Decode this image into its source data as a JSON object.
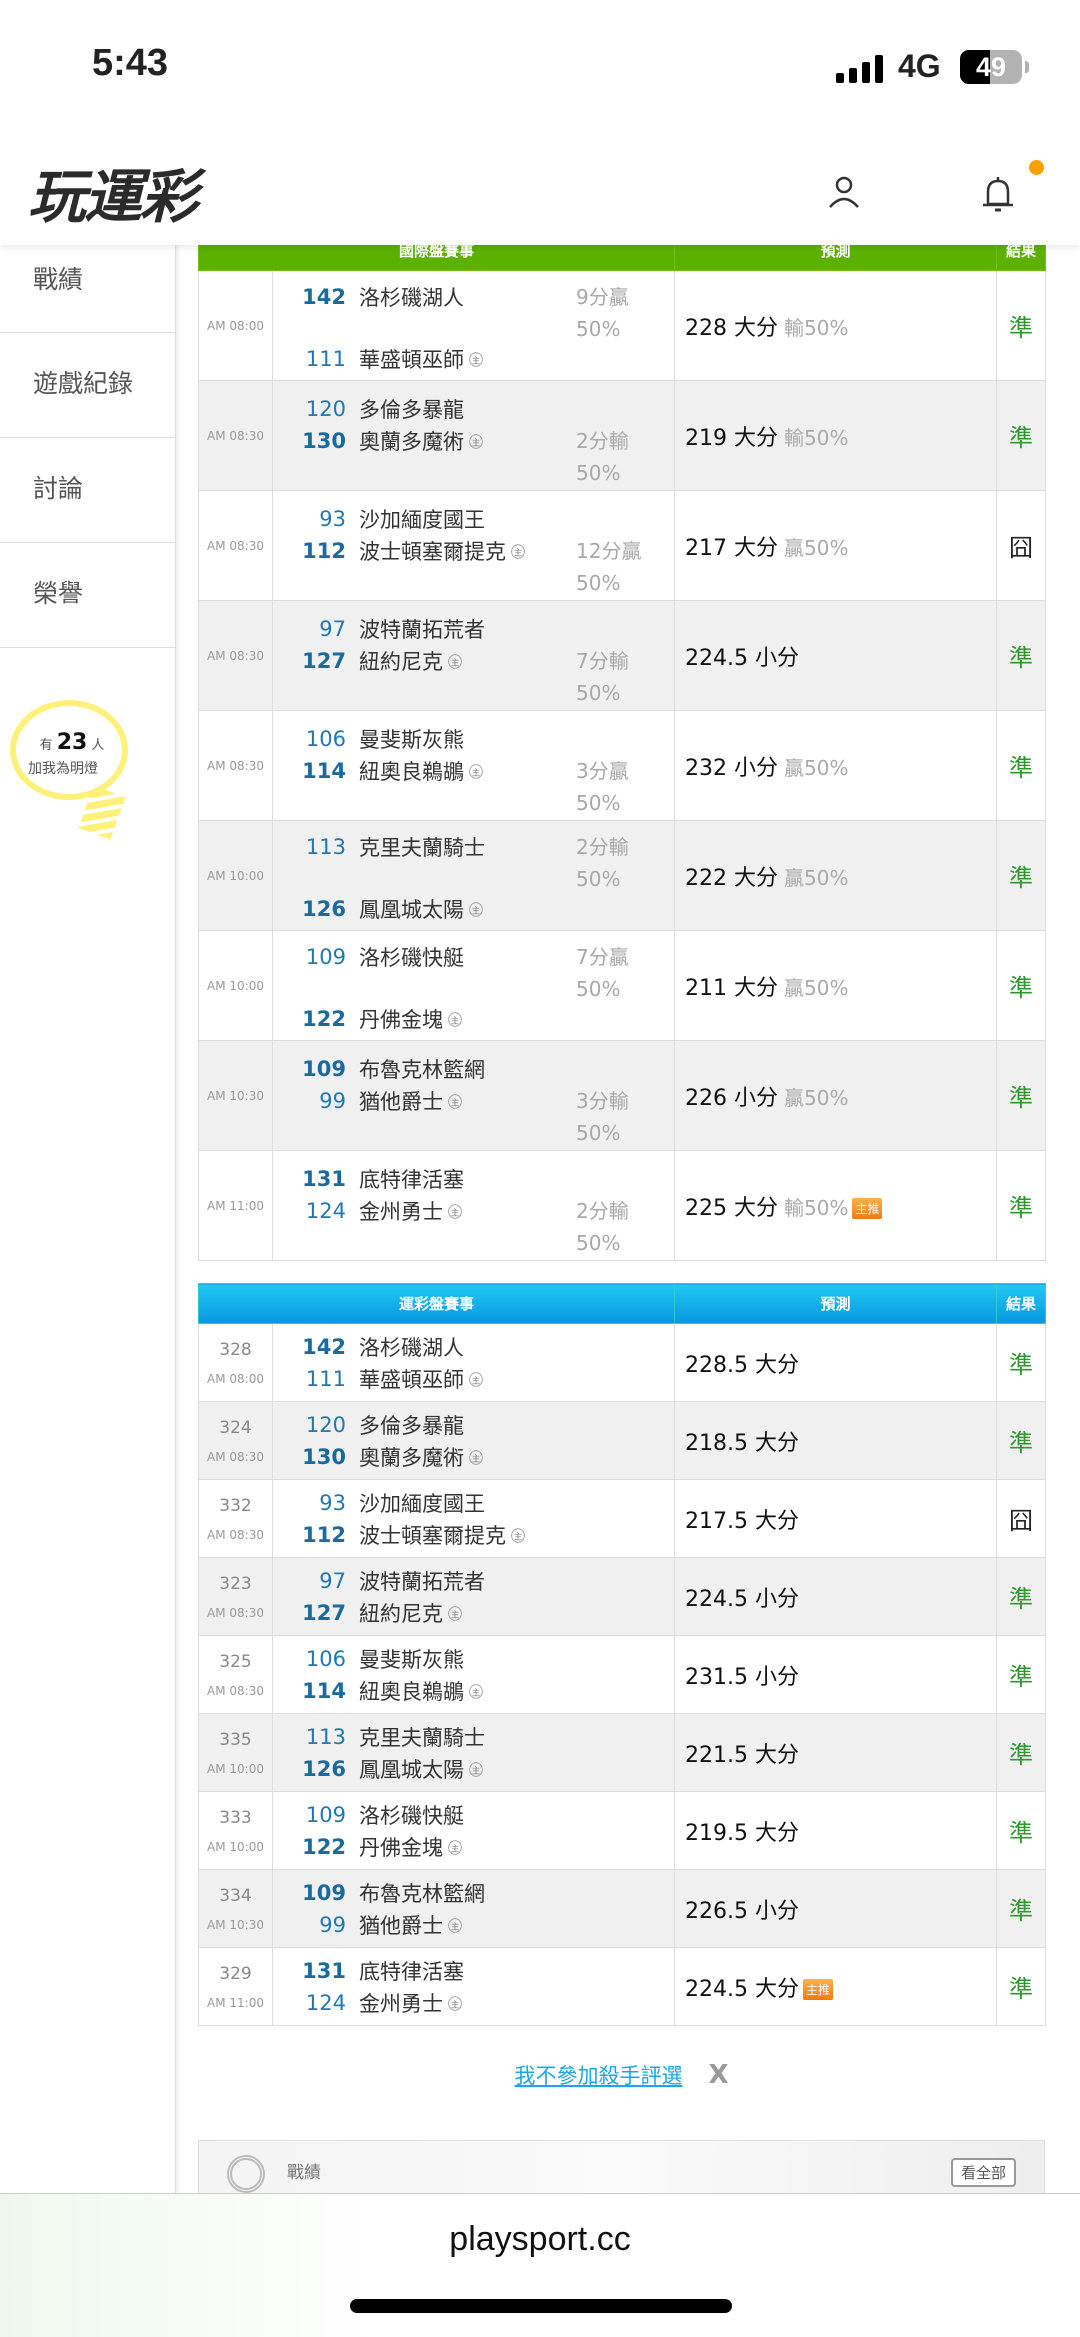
{
  "status_bar": {
    "time": "5:43",
    "network": "4G",
    "battery": "49",
    "battery_level": 0.49
  },
  "header": {
    "logo_text": "玩運彩",
    "user_icon": "user-icon",
    "bell_icon": "bell-icon",
    "notification_dot_color": "#ffa000"
  },
  "sidebar": {
    "items": [
      {
        "label": "戰績"
      },
      {
        "label": "遊戲紀錄"
      },
      {
        "label": "討論"
      },
      {
        "label": "榮譽"
      }
    ],
    "lamp": {
      "prefix": "有",
      "count": "23",
      "suffix": "人",
      "caption": "加我為明燈"
    }
  },
  "intl_table": {
    "headers": [
      "國際盤賽事",
      "預測",
      "結果"
    ],
    "home_tag": "主",
    "rows": [
      {
        "time": "AM 08:00",
        "away": {
          "num": "142",
          "name": "洛杉磯湖人"
        },
        "home": {
          "num": "111",
          "name": "華盛頓巫師"
        },
        "winner": "away",
        "spread": {
          "text": "9分贏",
          "pct": "50%",
          "side": "away"
        },
        "prediction": {
          "line": "228 大分",
          "odds": "輸50%"
        },
        "result": "準"
      },
      {
        "time": "AM 08:30",
        "away": {
          "num": "120",
          "name": "多倫多暴龍"
        },
        "home": {
          "num": "130",
          "name": "奧蘭多魔術"
        },
        "winner": "home",
        "spread": {
          "text": "2分輸",
          "pct": "50%",
          "side": "home"
        },
        "prediction": {
          "line": "219 大分",
          "odds": "輸50%"
        },
        "result": "準"
      },
      {
        "time": "AM 08:30",
        "away": {
          "num": "93",
          "name": "沙加緬度國王"
        },
        "home": {
          "num": "112",
          "name": "波士頓塞爾提克"
        },
        "winner": "home",
        "spread": {
          "text": "12分贏",
          "pct": "50%",
          "side": "home"
        },
        "prediction": {
          "line": "217 大分",
          "odds": "贏50%"
        },
        "result": "囧"
      },
      {
        "time": "AM 08:30",
        "away": {
          "num": "97",
          "name": "波特蘭拓荒者"
        },
        "home": {
          "num": "127",
          "name": "紐約尼克"
        },
        "winner": "home",
        "spread": {
          "text": "7分輸",
          "pct": "50%",
          "side": "home"
        },
        "prediction": {
          "line": "224.5 小分",
          "odds": ""
        },
        "result": "準"
      },
      {
        "time": "AM 08:30",
        "away": {
          "num": "106",
          "name": "曼斐斯灰熊"
        },
        "home": {
          "num": "114",
          "name": "紐奧良鵜鶘"
        },
        "winner": "home",
        "spread": {
          "text": "3分贏",
          "pct": "50%",
          "side": "home"
        },
        "prediction": {
          "line": "232 小分",
          "odds": "贏50%"
        },
        "result": "準"
      },
      {
        "time": "AM 10:00",
        "away": {
          "num": "113",
          "name": "克里夫蘭騎士"
        },
        "home": {
          "num": "126",
          "name": "鳳凰城太陽"
        },
        "winner": "home",
        "spread": {
          "text": "2分輸",
          "pct": "50%",
          "side": "away"
        },
        "prediction": {
          "line": "222 大分",
          "odds": "贏50%"
        },
        "result": "準"
      },
      {
        "time": "AM 10:00",
        "away": {
          "num": "109",
          "name": "洛杉磯快艇"
        },
        "home": {
          "num": "122",
          "name": "丹佛金塊"
        },
        "winner": "home",
        "spread": {
          "text": "7分贏",
          "pct": "50%",
          "side": "away"
        },
        "prediction": {
          "line": "211 大分",
          "odds": "贏50%"
        },
        "result": "準"
      },
      {
        "time": "AM 10:30",
        "away": {
          "num": "109",
          "name": "布魯克林籃網"
        },
        "home": {
          "num": "99",
          "name": "猶他爵士"
        },
        "winner": "away",
        "spread": {
          "text": "3分輸",
          "pct": "50%",
          "side": "home"
        },
        "prediction": {
          "line": "226 小分",
          "odds": "贏50%"
        },
        "result": "準"
      },
      {
        "time": "AM 11:00",
        "away": {
          "num": "131",
          "name": "底特律活塞"
        },
        "home": {
          "num": "124",
          "name": "金州勇士"
        },
        "winner": "away",
        "spread": {
          "text": "2分輸",
          "pct": "50%",
          "side": "home"
        },
        "prediction": {
          "line": "225 大分",
          "odds": "輸50%",
          "badge": "主推"
        },
        "result": "準"
      }
    ]
  },
  "lottery_table": {
    "headers": [
      "運彩盤賽事",
      "預測",
      "結果"
    ],
    "home_tag": "主",
    "rows": [
      {
        "id": "328",
        "time": "AM 08:00",
        "away": {
          "num": "142",
          "name": "洛杉磯湖人"
        },
        "home": {
          "num": "111",
          "name": "華盛頓巫師"
        },
        "winner": "away",
        "prediction": {
          "line": "228.5 大分"
        },
        "result": "準"
      },
      {
        "id": "324",
        "time": "AM 08:30",
        "away": {
          "num": "120",
          "name": "多倫多暴龍"
        },
        "home": {
          "num": "130",
          "name": "奧蘭多魔術"
        },
        "winner": "home",
        "prediction": {
          "line": "218.5 大分"
        },
        "result": "準"
      },
      {
        "id": "332",
        "time": "AM 08:30",
        "away": {
          "num": "93",
          "name": "沙加緬度國王"
        },
        "home": {
          "num": "112",
          "name": "波士頓塞爾提克"
        },
        "winner": "home",
        "prediction": {
          "line": "217.5 大分"
        },
        "result": "囧"
      },
      {
        "id": "323",
        "time": "AM 08:30",
        "away": {
          "num": "97",
          "name": "波特蘭拓荒者"
        },
        "home": {
          "num": "127",
          "name": "紐約尼克"
        },
        "winner": "home",
        "prediction": {
          "line": "224.5 小分"
        },
        "result": "準"
      },
      {
        "id": "325",
        "time": "AM 08:30",
        "away": {
          "num": "106",
          "name": "曼斐斯灰熊"
        },
        "home": {
          "num": "114",
          "name": "紐奧良鵜鶘"
        },
        "winner": "home",
        "prediction": {
          "line": "231.5 小分"
        },
        "result": "準"
      },
      {
        "id": "335",
        "time": "AM 10:00",
        "away": {
          "num": "113",
          "name": "克里夫蘭騎士"
        },
        "home": {
          "num": "126",
          "name": "鳳凰城太陽"
        },
        "winner": "home",
        "prediction": {
          "line": "221.5 大分"
        },
        "result": "準"
      },
      {
        "id": "333",
        "time": "AM 10:00",
        "away": {
          "num": "109",
          "name": "洛杉磯快艇"
        },
        "home": {
          "num": "122",
          "name": "丹佛金塊"
        },
        "winner": "home",
        "prediction": {
          "line": "219.5 大分"
        },
        "result": "準"
      },
      {
        "id": "334",
        "time": "AM 10:30",
        "away": {
          "num": "109",
          "name": "布魯克林籃網"
        },
        "home": {
          "num": "99",
          "name": "猶他爵士"
        },
        "winner": "away",
        "prediction": {
          "line": "226.5 小分"
        },
        "result": "準"
      },
      {
        "id": "329",
        "time": "AM 11:00",
        "away": {
          "num": "131",
          "name": "底特律活塞"
        },
        "home": {
          "num": "124",
          "name": "金州勇士"
        },
        "winner": "away",
        "prediction": {
          "line": "224.5 大分",
          "badge": "主推"
        },
        "result": "準"
      }
    ]
  },
  "optout": {
    "link": "我不參加殺手評選",
    "close": "X"
  },
  "record_panel": {
    "title": "戰績",
    "view_all": "看全部"
  },
  "browser": {
    "url": "playsport.cc"
  },
  "colors": {
    "intl_header": "#5cb000",
    "lottery_header": "#0796df",
    "hit": "#2b9a2b",
    "team_number": "#1f78b4",
    "link": "#1aa6e8"
  }
}
